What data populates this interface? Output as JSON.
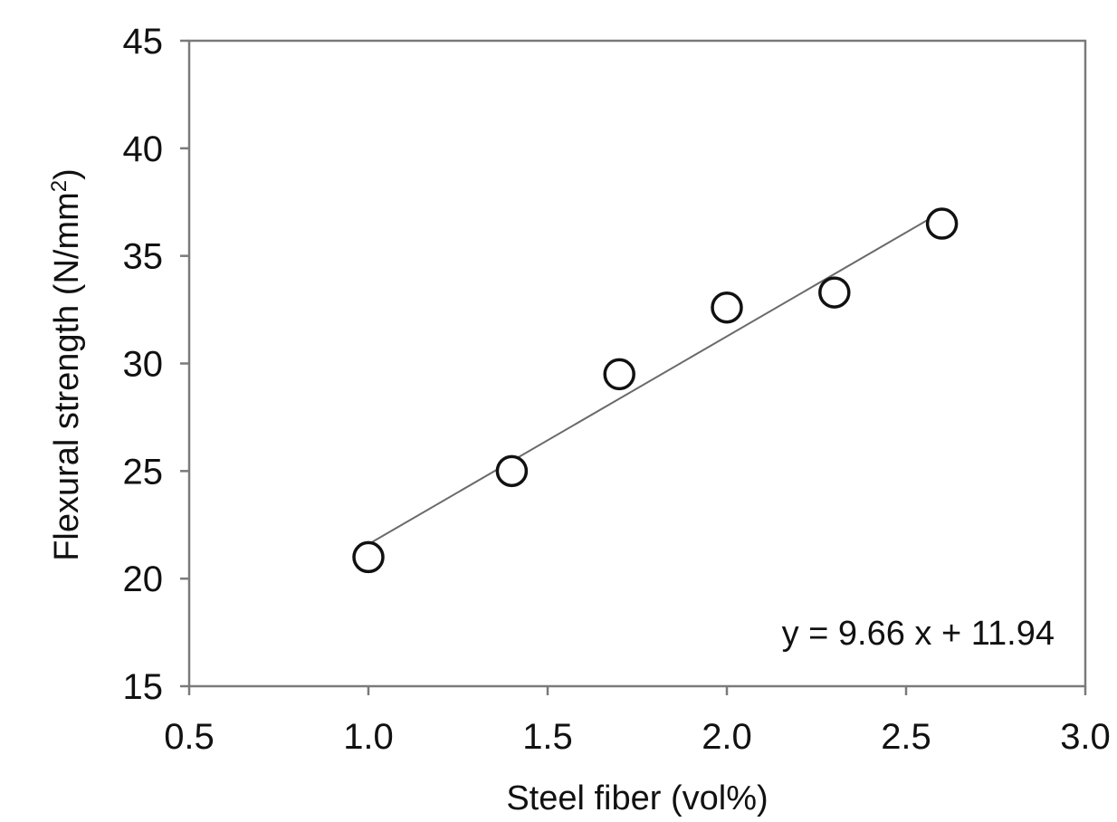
{
  "chart_data": {
    "type": "scatter",
    "title": "",
    "xlabel": "Steel fiber (vol%)",
    "ylabel_main": "Flexural  strength (N/mm",
    "ylabel_sup": "2",
    "ylabel_end": ")",
    "xlim": [
      0.5,
      3.0
    ],
    "ylim": [
      15,
      45
    ],
    "xticks": [
      0.5,
      1.0,
      1.5,
      2.0,
      2.5,
      3.0
    ],
    "xtick_labels": [
      "0.5",
      "1.0",
      "1.5",
      "2.0",
      "2.5",
      "3.0"
    ],
    "yticks": [
      15,
      20,
      25,
      30,
      35,
      40,
      45
    ],
    "ytick_labels": [
      "15",
      "20",
      "25",
      "30",
      "35",
      "40",
      "45"
    ],
    "grid": false,
    "series": [
      {
        "name": "Flexural strength",
        "marker": "open-circle",
        "x": [
          1.0,
          1.4,
          1.7,
          2.0,
          2.3,
          2.6
        ],
        "y": [
          21.0,
          25.0,
          29.5,
          32.6,
          33.3,
          36.5
        ]
      }
    ],
    "fit": {
      "slope": 9.66,
      "intercept": 11.94,
      "x_range": [
        1.0,
        2.6
      ],
      "label": "y = 9.66 x  + 11.94"
    }
  },
  "colors": {
    "axis": "#7a7a7a",
    "marker": "#111111",
    "fit": "#6a6a6a",
    "text": "#111111"
  }
}
